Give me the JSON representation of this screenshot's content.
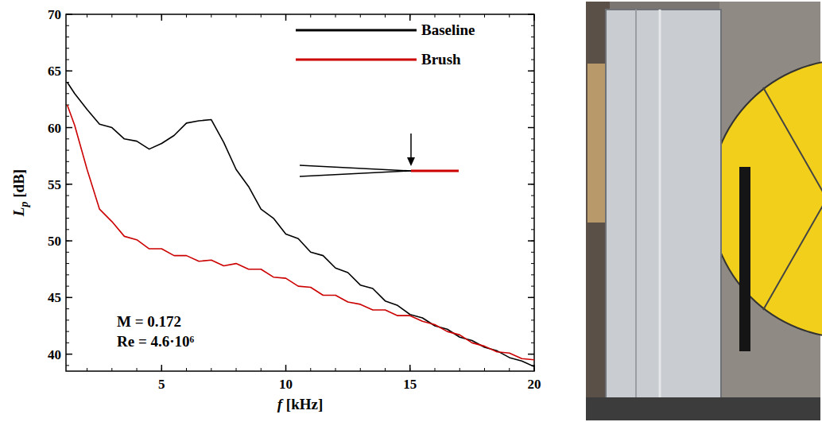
{
  "chart_data": {
    "type": "line",
    "x_label": "f [kHz]",
    "y_label": "Lp [dB]",
    "annotations": [
      "M = 0.172",
      "Re = 4.6·10⁶"
    ],
    "xlim": [
      1.15,
      20
    ],
    "ylim": [
      38.5,
      70
    ],
    "xticks": [
      5,
      10,
      15,
      20
    ],
    "yticks": [
      40,
      45,
      50,
      55,
      60,
      65,
      70
    ],
    "legend": "top-right",
    "x": [
      1.2,
      1.5,
      2,
      2.5,
      3,
      3.5,
      4,
      4.5,
      5,
      5.5,
      6,
      6.5,
      7,
      7.5,
      8,
      8.5,
      9,
      9.5,
      10,
      10.5,
      11,
      11.5,
      12,
      12.5,
      13,
      13.5,
      14,
      14.5,
      15,
      15.5,
      16,
      16.5,
      17,
      17.5,
      18,
      18.5,
      19,
      19.5,
      20
    ],
    "series": [
      {
        "name": "Baseline",
        "color": "#000000",
        "values": [
          64.0,
          63.0,
          61.6,
          60.3,
          60.0,
          59.0,
          58.8,
          58.1,
          58.6,
          59.3,
          60.4,
          60.6,
          60.7,
          58.7,
          56.3,
          54.8,
          52.8,
          52.0,
          50.6,
          50.2,
          49.0,
          48.7,
          47.6,
          47.2,
          46.1,
          45.8,
          44.7,
          44.3,
          43.5,
          43.2,
          42.5,
          42.2,
          41.5,
          41.2,
          40.6,
          40.3,
          39.7,
          39.4,
          38.9
        ]
      },
      {
        "name": "Brush",
        "color": "#cc0000",
        "values": [
          62.0,
          60.2,
          56.3,
          52.8,
          51.7,
          50.4,
          50.1,
          49.3,
          49.3,
          48.7,
          48.7,
          48.2,
          48.3,
          47.8,
          48.0,
          47.5,
          47.5,
          46.8,
          46.7,
          46.0,
          45.9,
          45.2,
          45.2,
          44.6,
          44.4,
          43.9,
          43.9,
          43.4,
          43.4,
          42.9,
          42.6,
          42.0,
          41.7,
          41.0,
          40.7,
          40.2,
          40.1,
          39.6,
          39.5
        ]
      }
    ]
  }
}
